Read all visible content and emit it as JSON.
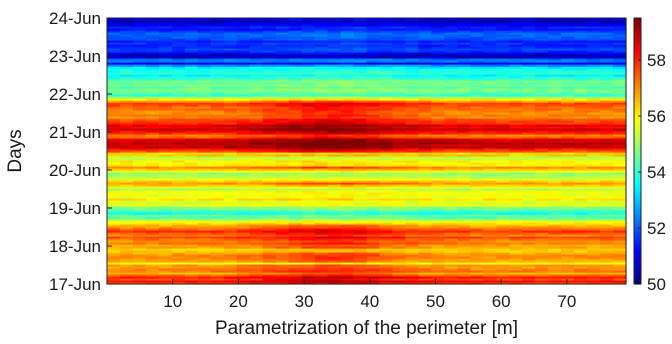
{
  "chart_data": {
    "type": "heatmap",
    "xlabel": "Parametrization of the perimeter [m]",
    "ylabel": "Days",
    "x_ticks": [
      10,
      20,
      30,
      40,
      50,
      60,
      70
    ],
    "xlim": [
      0,
      79
    ],
    "y_ticks": [
      "17-Jun",
      "18-Jun",
      "19-Jun",
      "20-Jun",
      "21-Jun",
      "22-Jun",
      "23-Jun",
      "24-Jun"
    ],
    "ylim": [
      "17-Jun",
      "24-Jun"
    ],
    "colorbar": {
      "ticks": [
        50,
        52,
        54,
        56,
        58
      ],
      "range": [
        50,
        59.5
      ],
      "colormap": "jet"
    },
    "day_profile": {
      "days": [
        17.0,
        17.1,
        17.25,
        17.4,
        17.55,
        17.75,
        17.9,
        18.0,
        18.2,
        18.4,
        18.55,
        18.7,
        18.9,
        19.1,
        19.3,
        19.5,
        19.7,
        19.9,
        20.1,
        20.3,
        20.45,
        20.6,
        20.75,
        20.9,
        21.0,
        21.15,
        21.3,
        21.5,
        21.65,
        21.8,
        21.9,
        22.0,
        22.1,
        22.3,
        22.55,
        22.75,
        22.8,
        22.9,
        23.0,
        23.1,
        23.2,
        23.35,
        23.55,
        23.8,
        24.0
      ],
      "mean_temperature": [
        58.0,
        58.2,
        57.5,
        56.6,
        56.0,
        56.8,
        55.9,
        56.2,
        56.6,
        57.6,
        56.4,
        55.2,
        53.6,
        55.5,
        56.2,
        55.5,
        56.3,
        55.3,
        56.3,
        55.8,
        56.6,
        58.7,
        58.2,
        57.2,
        57.8,
        58.4,
        57.6,
        57.0,
        57.8,
        57.4,
        55.6,
        54.2,
        54.1,
        54.0,
        54.4,
        53.0,
        51.4,
        52.6,
        50.6,
        51.3,
        52.1,
        51.1,
        52.0,
        51.0,
        50.6
      ]
    }
  }
}
